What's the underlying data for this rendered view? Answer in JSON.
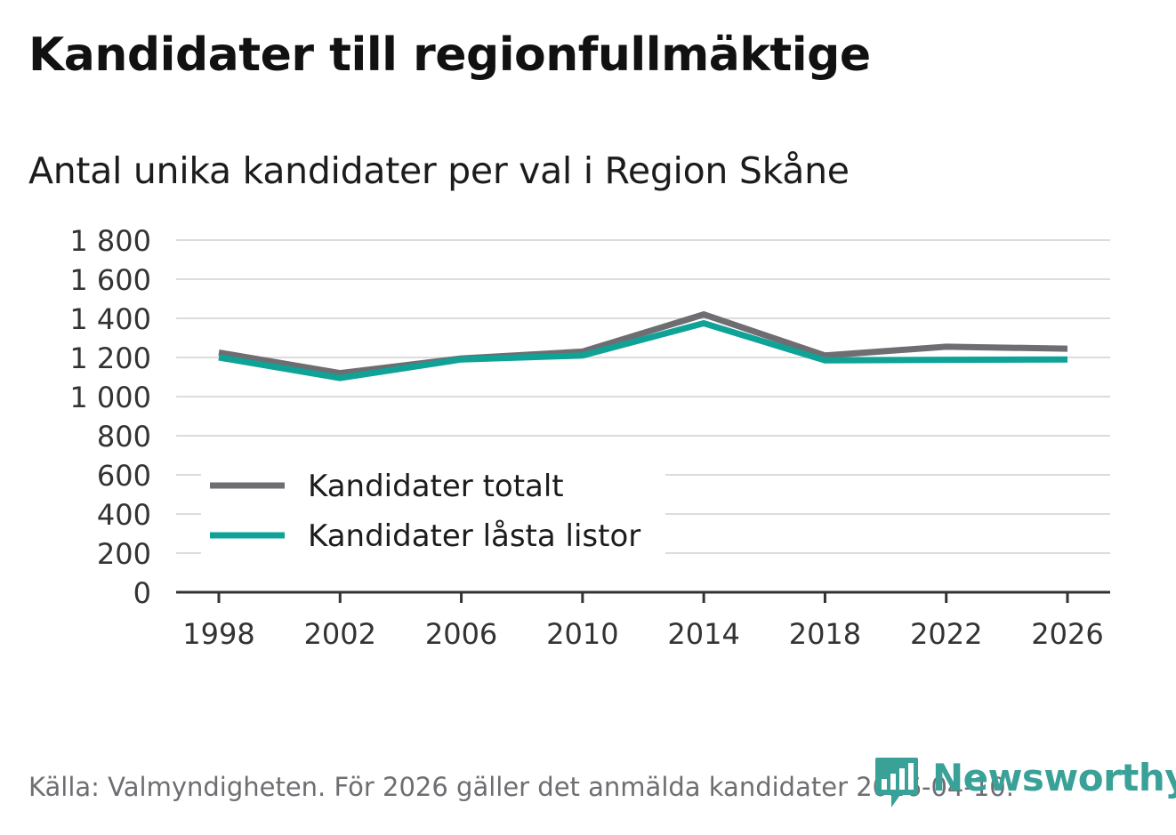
{
  "title": "Kandidater till regionfullmäktige",
  "subtitle": "Antal unika kandidater per val i Region Skåne",
  "source": "Källa: Valmyndigheten. För 2026 gäller det anmälda kandidater 2026-04-10.",
  "brand": {
    "name": "Newsworthy",
    "icon": "bar-chart-speech-bubble-icon",
    "color": "#3aa198"
  },
  "chart_data": {
    "type": "line",
    "title": "Kandidater till regionfullmäktige",
    "subtitle": "Antal unika kandidater per val i Region Skåne",
    "xlabel": "",
    "ylabel": "",
    "x": [
      1998,
      2002,
      2006,
      2010,
      2014,
      2018,
      2022,
      2026
    ],
    "x_tick_labels": [
      "1998",
      "2002",
      "2006",
      "2010",
      "2014",
      "2018",
      "2022",
      "2026"
    ],
    "ylim": [
      0,
      1800
    ],
    "y_ticks": [
      0,
      200,
      400,
      600,
      800,
      1000,
      1200,
      1400,
      1600,
      1800
    ],
    "y_tick_labels": [
      "0",
      "200",
      "400",
      "600",
      "800",
      "1 000",
      "1 200",
      "1 400",
      "1 600",
      "1 800"
    ],
    "grid": true,
    "legend_position": "bottom-left",
    "series": [
      {
        "name": "Kandidater totalt",
        "color": "#6e6e72",
        "values": [
          1225,
          1120,
          1195,
          1230,
          1420,
          1210,
          1255,
          1245
        ]
      },
      {
        "name": "Kandidater låsta listor",
        "color": "#0fa397",
        "values": [
          1200,
          1095,
          1190,
          1210,
          1375,
          1185,
          1188,
          1190
        ]
      }
    ]
  }
}
